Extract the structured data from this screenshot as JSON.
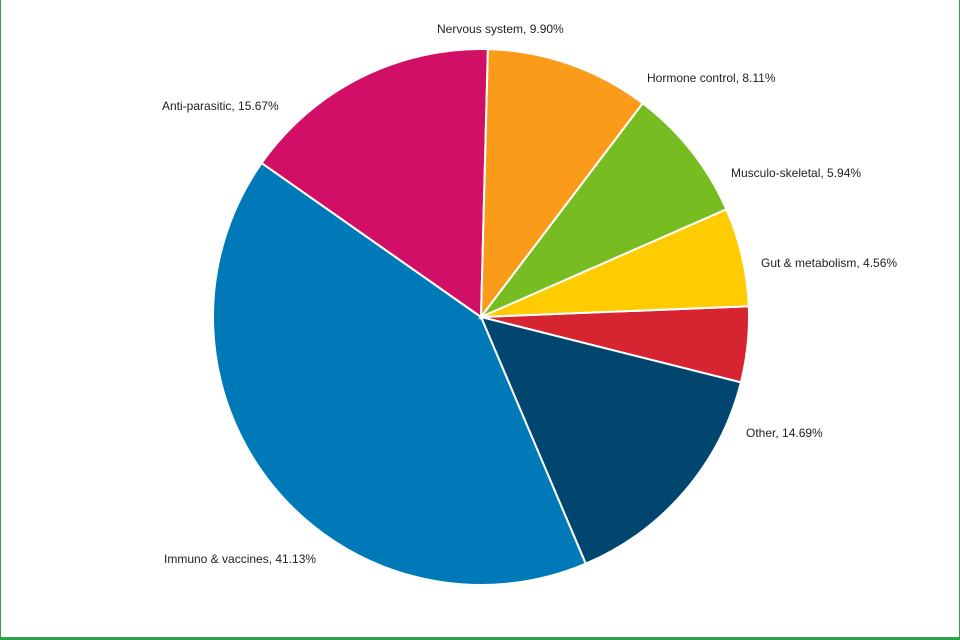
{
  "chart_data": {
    "type": "pie",
    "title": "",
    "slices": [
      {
        "label": "Gut & metabolism",
        "value": 4.56,
        "display": "Gut & metabolism, 4.56%",
        "color": "#d62430"
      },
      {
        "label": "Other",
        "value": 14.69,
        "display": "Other, 14.69%",
        "color": "#00466e"
      },
      {
        "label": "Immuno & vaccines",
        "value": 41.13,
        "display": "Immuno & vaccines, 41.13%",
        "color": "#0079b8"
      },
      {
        "label": "Anti-parasitic",
        "value": 15.67,
        "display": "Anti-parasitic, 15.67%",
        "color": "#d20f67"
      },
      {
        "label": "Nervous system",
        "value": 9.9,
        "display": "Nervous system, 9.90%",
        "color": "#fa9b1a"
      },
      {
        "label": "Hormone control",
        "value": 8.11,
        "display": "Hormone control, 8.11%",
        "color": "#77bd22"
      },
      {
        "label": "Musculo-skeletal",
        "value": 5.94,
        "display": "Musculo-skeletal, 5.94%",
        "color": "#fecc00"
      }
    ],
    "legend": "none"
  }
}
